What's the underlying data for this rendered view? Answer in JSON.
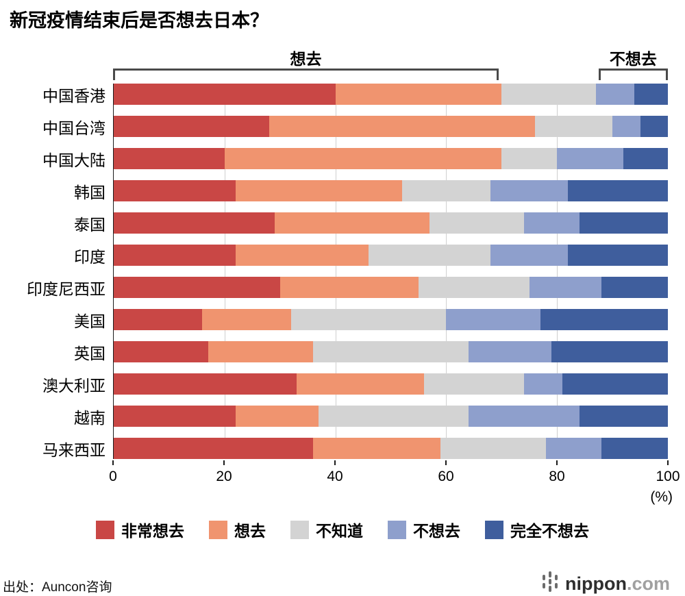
{
  "title": "新冠疫情结束后是否想去日本？",
  "annotations": {
    "want": {
      "label": "想去",
      "start": 0,
      "end": 69.5
    },
    "not_want": {
      "label": "不想去",
      "start": 87.5,
      "end": 100
    }
  },
  "axis": {
    "ticks": [
      0,
      20,
      40,
      60,
      80,
      100
    ],
    "unit": "(%)"
  },
  "legend": [
    {
      "label": "非常想去",
      "color": "#c94745"
    },
    {
      "label": "想去",
      "color": "#f0946f"
    },
    {
      "label": "不知道",
      "color": "#d3d3d3"
    },
    {
      "label": "不想去",
      "color": "#8e9fcc"
    },
    {
      "label": "完全不想去",
      "color": "#3f5e9d"
    }
  ],
  "chart_data": {
    "type": "bar",
    "stacked": true,
    "orientation": "horizontal",
    "title": "新冠疫情结束后是否想去日本？",
    "xlabel": "(%)",
    "ylabel": "",
    "xlim": [
      0,
      100
    ],
    "grid": true,
    "legend_position": "bottom",
    "categories": [
      "中国香港",
      "中国台湾",
      "中国大陆",
      "韩国",
      "泰国",
      "印度",
      "印度尼西亚",
      "美国",
      "英国",
      "澳大利亚",
      "越南",
      "马来西亚"
    ],
    "series": [
      {
        "name": "非常想去",
        "color": "#c94745",
        "values": [
          40,
          28,
          20,
          22,
          29,
          22,
          30,
          16,
          17,
          33,
          22,
          36
        ]
      },
      {
        "name": "想去",
        "color": "#f0946f",
        "values": [
          30,
          48,
          50,
          30,
          28,
          24,
          25,
          16,
          19,
          23,
          15,
          23
        ]
      },
      {
        "name": "不知道",
        "color": "#d3d3d3",
        "values": [
          17,
          14,
          10,
          16,
          17,
          22,
          20,
          28,
          28,
          18,
          27,
          19
        ]
      },
      {
        "name": "不想去",
        "color": "#8e9fcc",
        "values": [
          7,
          5,
          12,
          14,
          10,
          14,
          13,
          17,
          15,
          7,
          20,
          10
        ]
      },
      {
        "name": "完全不想去",
        "color": "#3f5e9d",
        "values": [
          6,
          5,
          8,
          18,
          16,
          18,
          12,
          23,
          21,
          19,
          16,
          12
        ]
      }
    ]
  },
  "source": "出处：Auncon咨询",
  "logo": {
    "text": "nippon",
    "suffix": ".com"
  }
}
